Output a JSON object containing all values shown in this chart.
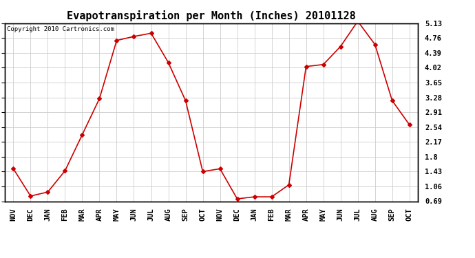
{
  "title": "Evapotranspiration per Month (Inches) 20101128",
  "copyright_text": "Copyright 2010 Cartronics.com",
  "x_labels": [
    "NOV",
    "DEC",
    "JAN",
    "FEB",
    "MAR",
    "APR",
    "MAY",
    "JUN",
    "JUL",
    "AUG",
    "SEP",
    "OCT",
    "NOV",
    "DEC",
    "JAN",
    "FEB",
    "MAR",
    "APR",
    "MAY",
    "JUN",
    "JUL",
    "AUG",
    "SEP",
    "OCT"
  ],
  "y_values": [
    1.5,
    0.82,
    0.92,
    1.45,
    2.35,
    3.25,
    4.7,
    4.8,
    4.88,
    4.15,
    3.2,
    1.43,
    1.5,
    0.75,
    0.8,
    0.8,
    1.1,
    4.05,
    4.1,
    4.55,
    5.18,
    4.6,
    3.2,
    2.6
  ],
  "y_ticks": [
    0.69,
    1.06,
    1.43,
    1.8,
    2.17,
    2.54,
    2.91,
    3.28,
    3.65,
    4.02,
    4.39,
    4.76,
    5.13
  ],
  "y_min": 0.69,
  "y_max": 5.13,
  "line_color": "#cc0000",
  "marker": "D",
  "marker_size": 3,
  "bg_color": "#ffffff",
  "grid_color": "#cccccc",
  "title_fontsize": 11,
  "copyright_fontsize": 6.5,
  "tick_fontsize": 7.5,
  "x_tick_fontsize": 7.5
}
